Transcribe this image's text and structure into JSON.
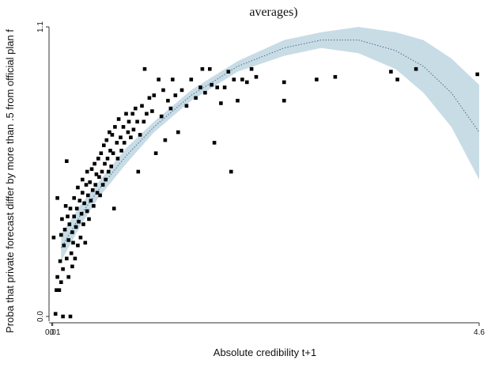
{
  "chart_data": {
    "type": "scatter",
    "title": "averages)",
    "xlabel": "Absolute credibility t+1",
    "ylabel": "Proba that private forecast differ by more than .5 from official plan f",
    "x_ticks": [
      {
        "value": 0.0,
        "label": "0"
      },
      {
        "value": 0.01,
        "label": "0.01"
      },
      {
        "value": 4.6,
        "label": "4.6"
      }
    ],
    "y_ticks": [
      {
        "value": 0.0,
        "label": "0.0"
      },
      {
        "value": 1.1,
        "label": "1.1"
      }
    ],
    "xlim": [
      -0.03,
      4.6
    ],
    "ylim": [
      0.0,
      1.1
    ],
    "grid": false,
    "legend": "none",
    "colors": {
      "points": "#000000",
      "fit_line": "#4a6f8a",
      "ci_band": "#c8dce6"
    },
    "fit": {
      "type": "quadratic",
      "x": [
        0.1,
        0.3,
        0.5,
        0.8,
        1.1,
        1.5,
        2.0,
        2.5,
        2.9,
        3.3,
        3.7,
        4.0,
        4.3,
        4.6
      ],
      "y": [
        0.26,
        0.38,
        0.48,
        0.61,
        0.72,
        0.84,
        0.95,
        1.02,
        1.05,
        1.05,
        1.01,
        0.95,
        0.85,
        0.7
      ],
      "lower": [
        0.21,
        0.34,
        0.45,
        0.58,
        0.7,
        0.82,
        0.93,
        0.99,
        1.02,
        1.0,
        0.94,
        0.85,
        0.72,
        0.52
      ],
      "upper": [
        0.31,
        0.42,
        0.51,
        0.64,
        0.74,
        0.86,
        0.97,
        1.05,
        1.08,
        1.1,
        1.08,
        1.05,
        0.98,
        0.88
      ]
    },
    "points": [
      [
        0.02,
        0.3
      ],
      [
        0.04,
        0.01
      ],
      [
        0.05,
        0.1
      ],
      [
        0.06,
        0.45
      ],
      [
        0.06,
        0.15
      ],
      [
        0.08,
        0.1
      ],
      [
        0.09,
        0.21
      ],
      [
        0.1,
        0.13
      ],
      [
        0.1,
        0.31
      ],
      [
        0.11,
        0.37
      ],
      [
        0.12,
        0.0
      ],
      [
        0.12,
        0.18
      ],
      [
        0.13,
        0.27
      ],
      [
        0.14,
        0.33
      ],
      [
        0.15,
        0.42
      ],
      [
        0.16,
        0.22
      ],
      [
        0.16,
        0.59
      ],
      [
        0.17,
        0.38
      ],
      [
        0.18,
        0.15
      ],
      [
        0.18,
        0.29
      ],
      [
        0.19,
        0.35
      ],
      [
        0.2,
        0.0
      ],
      [
        0.2,
        0.41
      ],
      [
        0.21,
        0.24
      ],
      [
        0.22,
        0.32
      ],
      [
        0.22,
        0.19
      ],
      [
        0.23,
        0.28
      ],
      [
        0.24,
        0.38
      ],
      [
        0.24,
        0.45
      ],
      [
        0.25,
        0.22
      ],
      [
        0.26,
        0.34
      ],
      [
        0.27,
        0.41
      ],
      [
        0.28,
        0.27
      ],
      [
        0.28,
        0.49
      ],
      [
        0.29,
        0.36
      ],
      [
        0.3,
        0.44
      ],
      [
        0.31,
        0.3
      ],
      [
        0.32,
        0.39
      ],
      [
        0.33,
        0.47
      ],
      [
        0.33,
        0.52
      ],
      [
        0.34,
        0.35
      ],
      [
        0.35,
        0.43
      ],
      [
        0.36,
        0.28
      ],
      [
        0.37,
        0.5
      ],
      [
        0.38,
        0.4
      ],
      [
        0.38,
        0.55
      ],
      [
        0.39,
        0.46
      ],
      [
        0.4,
        0.37
      ],
      [
        0.41,
        0.51
      ],
      [
        0.42,
        0.44
      ],
      [
        0.43,
        0.56
      ],
      [
        0.44,
        0.48
      ],
      [
        0.45,
        0.42
      ],
      [
        0.46,
        0.58
      ],
      [
        0.47,
        0.5
      ],
      [
        0.48,
        0.54
      ],
      [
        0.49,
        0.47
      ],
      [
        0.5,
        0.6
      ],
      [
        0.51,
        0.53
      ],
      [
        0.52,
        0.46
      ],
      [
        0.53,
        0.62
      ],
      [
        0.54,
        0.55
      ],
      [
        0.55,
        0.5
      ],
      [
        0.56,
        0.65
      ],
      [
        0.57,
        0.58
      ],
      [
        0.58,
        0.52
      ],
      [
        0.59,
        0.67
      ],
      [
        0.6,
        0.6
      ],
      [
        0.61,
        0.55
      ],
      [
        0.62,
        0.7
      ],
      [
        0.63,
        0.63
      ],
      [
        0.64,
        0.57
      ],
      [
        0.65,
        0.69
      ],
      [
        0.66,
        0.62
      ],
      [
        0.67,
        0.41
      ],
      [
        0.68,
        0.72
      ],
      [
        0.7,
        0.66
      ],
      [
        0.71,
        0.6
      ],
      [
        0.72,
        0.75
      ],
      [
        0.74,
        0.68
      ],
      [
        0.75,
        0.63
      ],
      [
        0.77,
        0.72
      ],
      [
        0.78,
        0.66
      ],
      [
        0.8,
        0.77
      ],
      [
        0.82,
        0.7
      ],
      [
        0.83,
        0.74
      ],
      [
        0.85,
        0.68
      ],
      [
        0.87,
        0.77
      ],
      [
        0.88,
        0.71
      ],
      [
        0.9,
        0.79
      ],
      [
        0.92,
        0.74
      ],
      [
        0.93,
        0.55
      ],
      [
        0.95,
        0.69
      ],
      [
        0.97,
        0.8
      ],
      [
        0.99,
        0.74
      ],
      [
        1.0,
        0.94
      ],
      [
        1.02,
        0.77
      ],
      [
        1.05,
        0.83
      ],
      [
        1.08,
        0.78
      ],
      [
        1.1,
        0.84
      ],
      [
        1.12,
        0.62
      ],
      [
        1.15,
        0.9
      ],
      [
        1.18,
        0.76
      ],
      [
        1.2,
        0.86
      ],
      [
        1.22,
        0.67
      ],
      [
        1.25,
        0.82
      ],
      [
        1.28,
        0.79
      ],
      [
        1.3,
        0.9
      ],
      [
        1.33,
        0.84
      ],
      [
        1.36,
        0.7
      ],
      [
        1.4,
        0.86
      ],
      [
        1.45,
        0.8
      ],
      [
        1.5,
        0.9
      ],
      [
        1.55,
        0.83
      ],
      [
        1.6,
        0.87
      ],
      [
        1.62,
        0.94
      ],
      [
        1.65,
        0.85
      ],
      [
        1.7,
        0.94
      ],
      [
        1.72,
        0.88
      ],
      [
        1.75,
        0.66
      ],
      [
        1.78,
        0.87
      ],
      [
        1.82,
        0.81
      ],
      [
        1.86,
        0.87
      ],
      [
        1.9,
        0.93
      ],
      [
        1.93,
        0.55
      ],
      [
        1.96,
        0.9
      ],
      [
        2.0,
        0.82
      ],
      [
        2.05,
        0.9
      ],
      [
        2.1,
        0.89
      ],
      [
        2.15,
        0.94
      ],
      [
        2.2,
        0.91
      ],
      [
        2.5,
        0.89
      ],
      [
        2.5,
        0.82
      ],
      [
        2.85,
        0.9
      ],
      [
        3.05,
        0.91
      ],
      [
        3.65,
        0.93
      ],
      [
        3.72,
        0.9
      ],
      [
        3.92,
        0.94
      ],
      [
        4.58,
        0.92
      ]
    ]
  }
}
